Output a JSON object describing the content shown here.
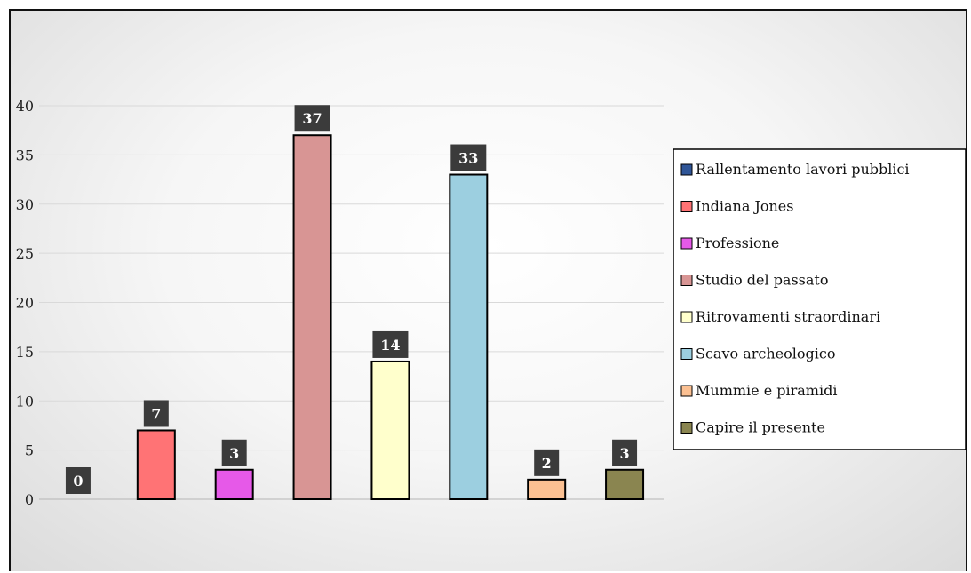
{
  "chart_data": {
    "type": "bar",
    "title": "",
    "xlabel": "",
    "ylabel": "",
    "ylim": [
      0,
      40
    ],
    "yticks": [
      0,
      5,
      10,
      15,
      20,
      25,
      30,
      35,
      40
    ],
    "grid": true,
    "legend_position": "right",
    "categories": [
      "Rallentamento lavori pubblici",
      "Indiana Jones",
      "Professione",
      "Studio del passato",
      "Ritrovamenti straordinari",
      "Scavo archeologico",
      "Mummie e piramidi",
      "Capire il presente"
    ],
    "values": [
      0,
      7,
      3,
      37,
      14,
      33,
      2,
      3
    ],
    "colors": [
      "#2f5597",
      "#ff7375",
      "#e659e8",
      "#d89594",
      "#ffffcc",
      "#9ccfe0",
      "#fbc092",
      "#8a8550"
    ],
    "data_labels": [
      "0",
      "7",
      "3",
      "37",
      "14",
      "33",
      "2",
      "3"
    ]
  }
}
